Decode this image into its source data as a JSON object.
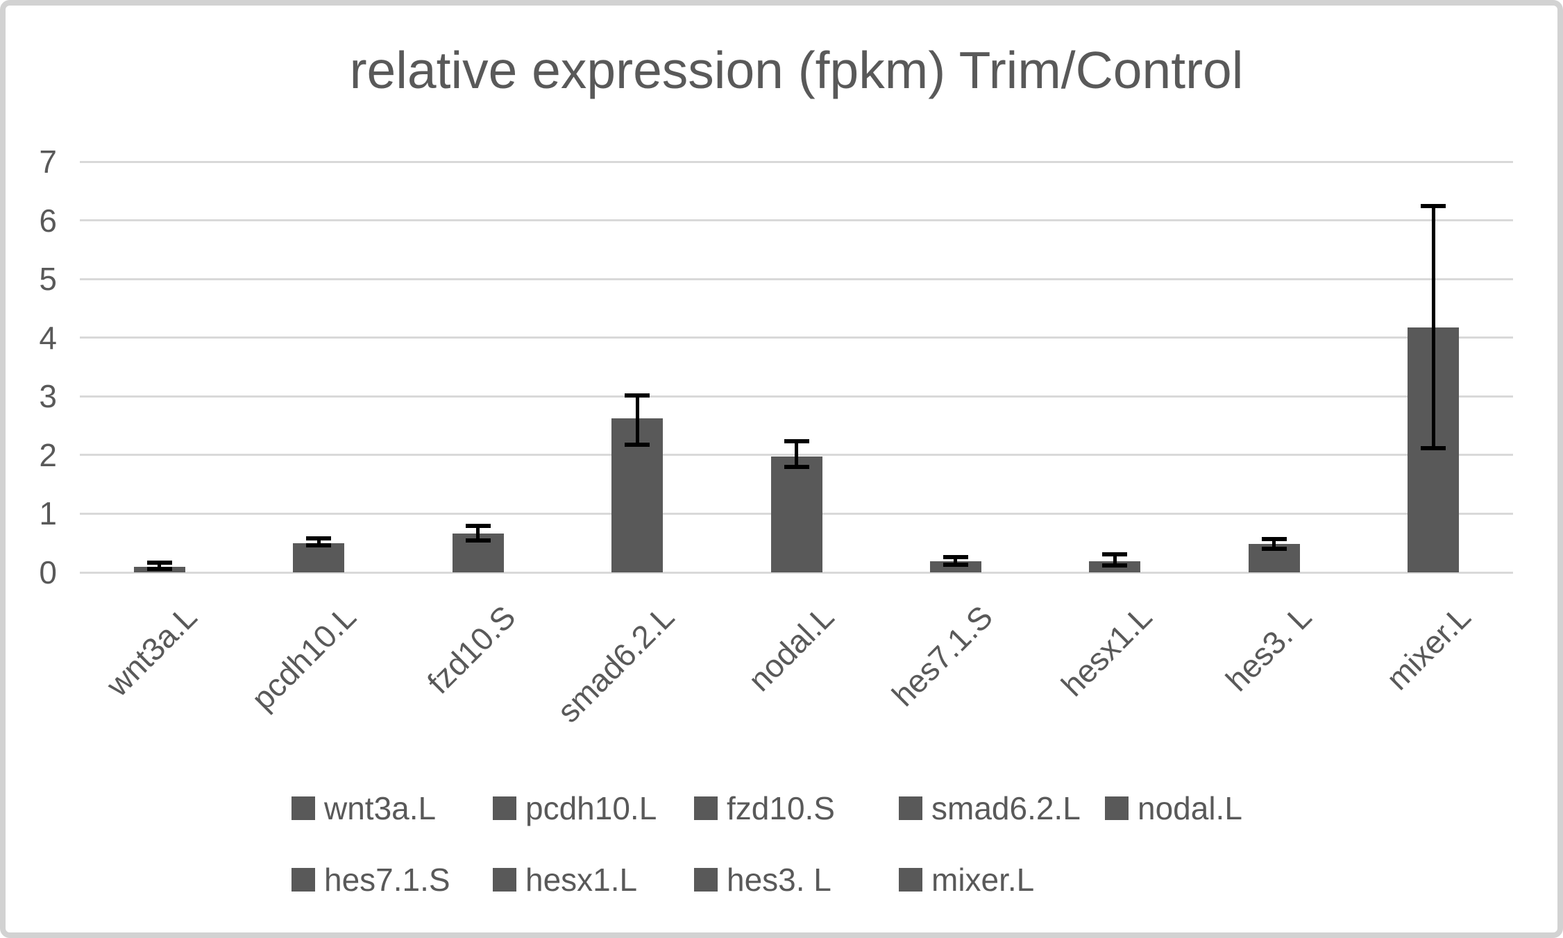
{
  "chart_data": {
    "type": "bar",
    "title": "relative expression (fpkm) Trim/Control",
    "categories": [
      "wnt3a.L",
      "pcdh10.L",
      "fzd10.S",
      "smad6.2.L",
      "nodal.L",
      "hes7.1.S",
      "hesx1.L",
      "hes3. L",
      "mixer.L"
    ],
    "values": [
      0.1,
      0.5,
      0.66,
      2.62,
      1.97,
      0.19,
      0.19,
      0.49,
      4.17
    ],
    "error_low": [
      0.06,
      0.46,
      0.54,
      2.18,
      1.8,
      0.13,
      0.12,
      0.4,
      2.12
    ],
    "error_high": [
      0.16,
      0.58,
      0.79,
      3.02,
      2.24,
      0.26,
      0.31,
      0.57,
      6.24
    ],
    "xlabel": "",
    "ylabel": "",
    "ylim": [
      0,
      7
    ],
    "yticks": [
      0,
      1,
      2,
      3,
      4,
      5,
      6,
      7
    ],
    "grid": true,
    "legend_position": "bottom",
    "legend_rows": [
      [
        "wnt3a.L",
        "pcdh10.L",
        "fzd10.S",
        "smad6.2.L",
        "nodal.L"
      ],
      [
        "hes7.1.S",
        "hesx1.L",
        "hes3. L",
        "mixer.L"
      ]
    ],
    "colors": {
      "bar": "#595959",
      "gridline": "#d9d9d9",
      "error_bar": "#000000",
      "text": "#595959",
      "border": "#d2d2d2",
      "background": "#ffffff"
    }
  }
}
